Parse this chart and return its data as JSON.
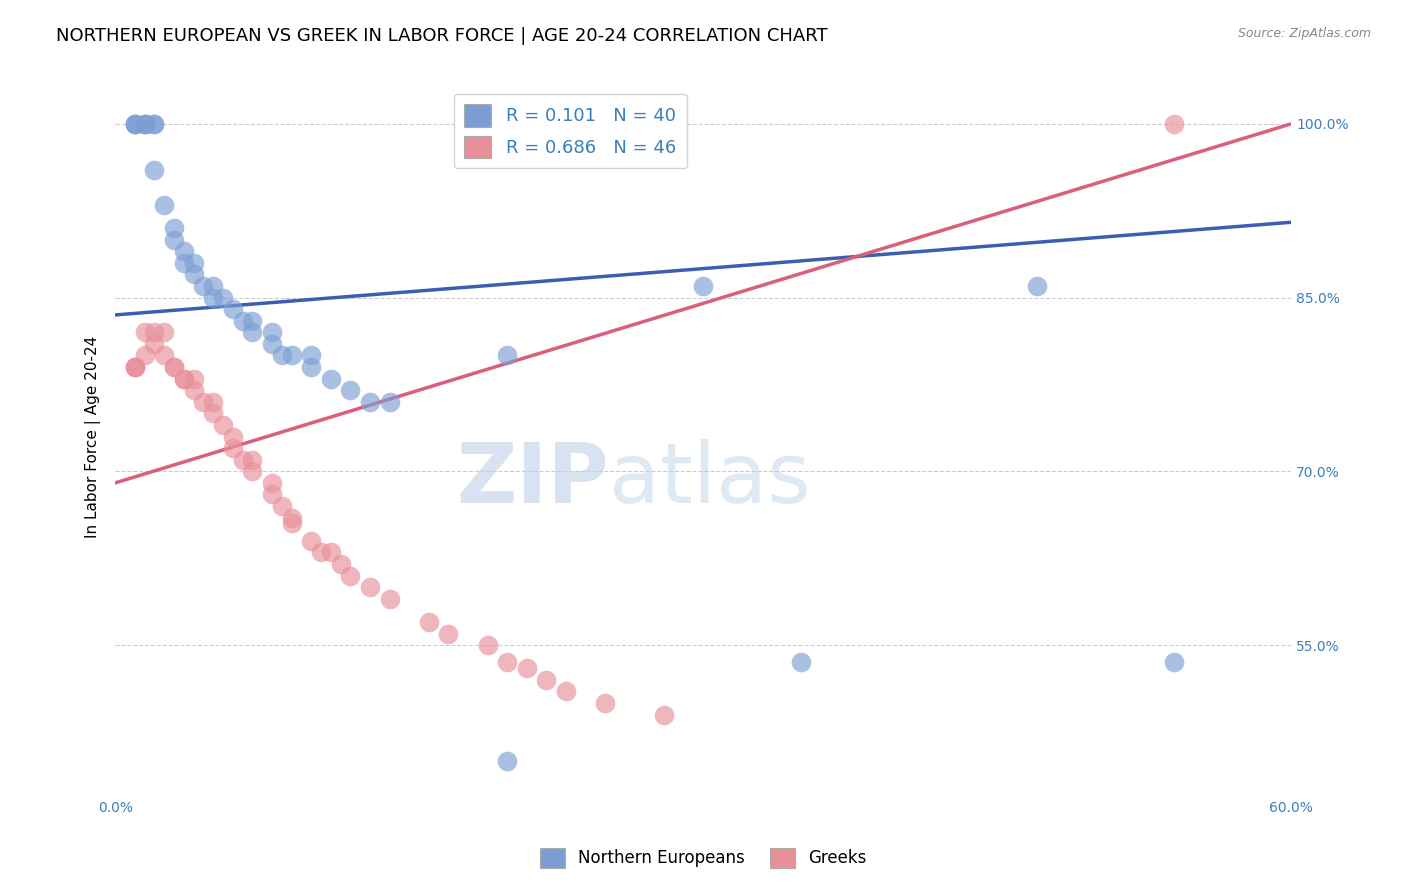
{
  "title": "NORTHERN EUROPEAN VS GREEK IN LABOR FORCE | AGE 20-24 CORRELATION CHART",
  "source": "Source: ZipAtlas.com",
  "xlabel_blue": "Northern Europeans",
  "xlabel_pink": "Greeks",
  "ylabel": "In Labor Force | Age 20-24",
  "xlim": [
    0.0,
    0.6
  ],
  "ylim": [
    0.42,
    1.04
  ],
  "xticks": [
    0.0,
    0.1,
    0.2,
    0.3,
    0.4,
    0.5,
    0.6
  ],
  "xticklabels": [
    "0.0%",
    "",
    "",
    "",
    "",
    "",
    "60.0%"
  ],
  "yticks": [
    0.55,
    0.7,
    0.85,
    1.0
  ],
  "yticklabels": [
    "55.0%",
    "70.0%",
    "85.0%",
    "100.0%"
  ],
  "blue_R": 0.101,
  "blue_N": 40,
  "pink_R": 0.686,
  "pink_N": 46,
  "blue_color": "#7b9fd4",
  "pink_color": "#e8909a",
  "blue_line_color": "#3a5fb0",
  "pink_line_color": "#d95f7a",
  "blue_scatter_x": [
    0.01,
    0.01,
    0.01,
    0.015,
    0.015,
    0.015,
    0.02,
    0.02,
    0.02,
    0.025,
    0.03,
    0.03,
    0.035,
    0.035,
    0.04,
    0.04,
    0.045,
    0.05,
    0.05,
    0.055,
    0.06,
    0.065,
    0.07,
    0.07,
    0.08,
    0.08,
    0.085,
    0.09,
    0.1,
    0.1,
    0.11,
    0.12,
    0.13,
    0.14,
    0.2,
    0.3,
    0.35,
    0.47,
    0.54,
    0.2
  ],
  "blue_scatter_y": [
    1.0,
    1.0,
    1.0,
    1.0,
    1.0,
    1.0,
    1.0,
    1.0,
    0.96,
    0.93,
    0.91,
    0.9,
    0.89,
    0.88,
    0.88,
    0.87,
    0.86,
    0.86,
    0.85,
    0.85,
    0.84,
    0.83,
    0.83,
    0.82,
    0.82,
    0.81,
    0.8,
    0.8,
    0.8,
    0.79,
    0.78,
    0.77,
    0.76,
    0.76,
    0.8,
    0.86,
    0.535,
    0.86,
    0.535,
    0.45
  ],
  "pink_scatter_x": [
    0.01,
    0.01,
    0.01,
    0.015,
    0.015,
    0.02,
    0.02,
    0.025,
    0.025,
    0.03,
    0.03,
    0.035,
    0.035,
    0.04,
    0.04,
    0.045,
    0.05,
    0.05,
    0.055,
    0.06,
    0.06,
    0.065,
    0.07,
    0.07,
    0.08,
    0.08,
    0.085,
    0.09,
    0.09,
    0.1,
    0.105,
    0.11,
    0.115,
    0.12,
    0.13,
    0.14,
    0.16,
    0.17,
    0.19,
    0.2,
    0.21,
    0.22,
    0.23,
    0.25,
    0.28,
    0.54
  ],
  "pink_scatter_y": [
    0.79,
    0.79,
    0.79,
    0.8,
    0.82,
    0.81,
    0.82,
    0.82,
    0.8,
    0.79,
    0.79,
    0.78,
    0.78,
    0.78,
    0.77,
    0.76,
    0.76,
    0.75,
    0.74,
    0.73,
    0.72,
    0.71,
    0.71,
    0.7,
    0.69,
    0.68,
    0.67,
    0.66,
    0.655,
    0.64,
    0.63,
    0.63,
    0.62,
    0.61,
    0.6,
    0.59,
    0.57,
    0.56,
    0.55,
    0.535,
    0.53,
    0.52,
    0.51,
    0.5,
    0.49,
    1.0
  ],
  "blue_line_x0": 0.0,
  "blue_line_x1": 0.6,
  "blue_line_y0": 0.835,
  "blue_line_y1": 0.915,
  "pink_line_x0": 0.0,
  "pink_line_x1": 0.6,
  "pink_line_y0": 0.69,
  "pink_line_y1": 1.0,
  "watermark_zip": "ZIP",
  "watermark_atlas": "atlas",
  "background_color": "#ffffff",
  "grid_color": "#cccccc",
  "title_fontsize": 13,
  "axis_label_fontsize": 11,
  "tick_fontsize": 10,
  "tick_color": "#3a7fbd",
  "legend_fontsize": 13
}
